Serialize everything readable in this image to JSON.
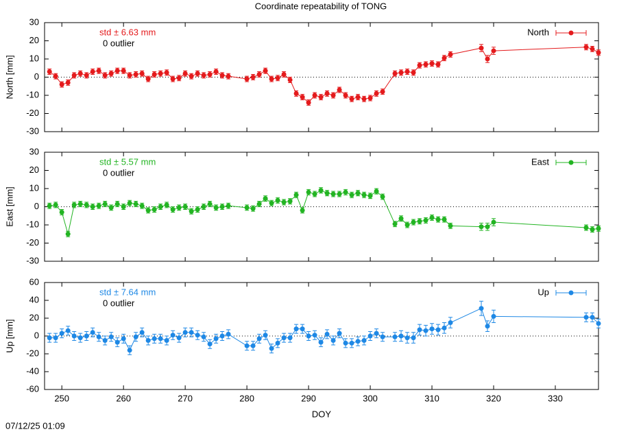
{
  "title": "Coordinate repeatability of TONG",
  "timestamp": "07/12/25 01:09",
  "chart_data": [
    {
      "type": "line",
      "y_label": "North [mm]",
      "std_label": "std ± 6.63 mm",
      "outlier_label": "0 outlier",
      "legend": "upper right",
      "zero_line": true,
      "x": [
        248,
        249,
        250,
        251,
        252,
        253,
        254,
        255,
        256,
        257,
        258,
        259,
        260,
        261,
        262,
        263,
        264,
        265,
        266,
        267,
        268,
        269,
        270,
        271,
        272,
        273,
        274,
        275,
        276,
        277,
        280,
        281,
        282,
        283,
        284,
        285,
        286,
        287,
        288,
        289,
        290,
        291,
        292,
        293,
        294,
        295,
        296,
        297,
        298,
        299,
        300,
        301,
        302,
        304,
        305,
        306,
        307,
        308,
        309,
        310,
        311,
        312,
        313,
        318,
        319,
        320,
        335,
        336,
        337
      ],
      "xlim": [
        247.2,
        337.0
      ],
      "xticks": [
        250,
        260,
        270,
        280,
        290,
        300,
        310,
        320,
        330
      ],
      "ylim": [
        -30,
        30
      ],
      "yticks": [
        -30,
        -20,
        -10,
        0,
        10,
        20,
        30
      ],
      "series": [
        {
          "name": "North",
          "color": "#e41a1c",
          "values": [
            3,
            0.5,
            -4,
            -3,
            1,
            2,
            1,
            3,
            3.5,
            1,
            2,
            3.5,
            3.5,
            1,
            1.5,
            2,
            -1,
            1.5,
            2,
            2.5,
            -1,
            -0.5,
            2,
            0.5,
            2,
            1,
            1.5,
            3,
            1,
            0.5,
            -1,
            0,
            1.5,
            3.5,
            -1,
            -0.5,
            1.5,
            -1.5,
            -9,
            -11,
            -14,
            -10,
            -11,
            -9,
            -10,
            -7,
            -10,
            -12,
            -11,
            -12,
            -11.5,
            -9,
            -8,
            2,
            2.5,
            3,
            2.5,
            6.5,
            7,
            7.5,
            7,
            10.5,
            12.5,
            16,
            10,
            14.5,
            16.5,
            15.5,
            13.5
          ],
          "errors": [
            1.5,
            1.5,
            1.5,
            1.5,
            1.5,
            1.5,
            1.5,
            1.5,
            1.5,
            1.5,
            1.5,
            1.5,
            1.5,
            1.5,
            1.5,
            1.5,
            1.5,
            1.5,
            1.5,
            1.5,
            1.5,
            1.5,
            1.5,
            1.5,
            1.5,
            1.5,
            1.5,
            1.5,
            1.5,
            1.5,
            1.5,
            1.5,
            1.5,
            1.5,
            1.5,
            1.5,
            1.5,
            1.5,
            1.5,
            1.5,
            1.5,
            1.5,
            1.5,
            1.5,
            1.5,
            1.5,
            1.5,
            1.5,
            1.5,
            1.5,
            1.5,
            1.5,
            1.5,
            1.5,
            1.5,
            1.5,
            1.5,
            1.5,
            1.5,
            1.5,
            1.5,
            1.5,
            1.5,
            2,
            2,
            2,
            1.5,
            1.5,
            1.5
          ]
        }
      ]
    },
    {
      "type": "line",
      "y_label": "East [mm]",
      "std_label": "std ± 5.57 mm",
      "outlier_label": "0 outlier",
      "legend": "upper right",
      "zero_line": true,
      "x": [
        248,
        249,
        250,
        251,
        252,
        253,
        254,
        255,
        256,
        257,
        258,
        259,
        260,
        261,
        262,
        263,
        264,
        265,
        266,
        267,
        268,
        269,
        270,
        271,
        272,
        273,
        274,
        275,
        276,
        277,
        280,
        281,
        282,
        283,
        284,
        285,
        286,
        287,
        288,
        289,
        290,
        291,
        292,
        293,
        294,
        295,
        296,
        297,
        298,
        299,
        300,
        301,
        302,
        304,
        305,
        306,
        307,
        308,
        309,
        310,
        311,
        312,
        313,
        318,
        319,
        320,
        335,
        336,
        337
      ],
      "xlim": [
        247.2,
        337.0
      ],
      "xticks": [
        250,
        260,
        270,
        280,
        290,
        300,
        310,
        320,
        330
      ],
      "ylim": [
        -30,
        30
      ],
      "yticks": [
        -30,
        -20,
        -10,
        0,
        10,
        20,
        30
      ],
      "series": [
        {
          "name": "East",
          "color": "#22b422",
          "values": [
            0.5,
            1,
            -3,
            -15,
            1,
            1.5,
            1,
            0,
            0.5,
            1.5,
            -0.5,
            1.5,
            0,
            2,
            1.5,
            0.5,
            -2,
            -1.5,
            0,
            1,
            -1.5,
            -0.5,
            0,
            -2.5,
            -1.5,
            0,
            1.5,
            -0.5,
            0,
            0.5,
            -0.5,
            -1,
            1.5,
            4.5,
            2,
            3.5,
            2.5,
            3,
            6.5,
            -2,
            8,
            7,
            9,
            7.5,
            7,
            7,
            8,
            6.5,
            7.5,
            6.5,
            6,
            8.5,
            5.5,
            -9.5,
            -6.5,
            -10,
            -8.5,
            -8,
            -7.5,
            -6,
            -7,
            -7,
            -10.5,
            -11,
            -11,
            -8.5,
            -11.5,
            -12.5,
            -12
          ],
          "errors": [
            1.5,
            1.5,
            1.5,
            1.5,
            1.5,
            1.5,
            1.5,
            1.5,
            1.5,
            1.5,
            1.5,
            1.5,
            1.5,
            1.5,
            1.5,
            1.5,
            1.5,
            1.5,
            1.5,
            1.5,
            1.5,
            1.5,
            1.5,
            1.5,
            1.5,
            1.5,
            1.5,
            1.5,
            1.5,
            1.5,
            1.5,
            1.5,
            1.5,
            1.5,
            1.5,
            1.5,
            1.5,
            1.5,
            1.5,
            1.5,
            1.5,
            1.5,
            1.5,
            1.5,
            1.5,
            1.5,
            1.5,
            1.5,
            1.5,
            1.5,
            1.5,
            1.5,
            1.5,
            1.5,
            1.5,
            1.5,
            1.5,
            1.5,
            1.5,
            1.5,
            1.5,
            1.5,
            1.5,
            2,
            2,
            2,
            1.5,
            1.5,
            1.5
          ]
        }
      ]
    },
    {
      "type": "line",
      "y_label": "Up [mm]",
      "x_label": "DOY",
      "std_label": "std ± 7.64 mm",
      "outlier_label": "0 outlier",
      "legend": "upper right",
      "zero_line": true,
      "x": [
        248,
        249,
        250,
        251,
        252,
        253,
        254,
        255,
        256,
        257,
        258,
        259,
        260,
        261,
        262,
        263,
        264,
        265,
        266,
        267,
        268,
        269,
        270,
        271,
        272,
        273,
        274,
        275,
        276,
        277,
        280,
        281,
        282,
        283,
        284,
        285,
        286,
        287,
        288,
        289,
        290,
        291,
        292,
        293,
        294,
        295,
        296,
        297,
        298,
        299,
        300,
        301,
        302,
        304,
        305,
        306,
        307,
        308,
        309,
        310,
        311,
        312,
        313,
        318,
        319,
        320,
        335,
        336,
        337
      ],
      "xlim": [
        247.2,
        337.0
      ],
      "xticks": [
        250,
        260,
        270,
        280,
        290,
        300,
        310,
        320,
        330
      ],
      "ylim": [
        -60,
        60
      ],
      "yticks": [
        -60,
        -40,
        -20,
        0,
        20,
        40,
        60
      ],
      "series": [
        {
          "name": "Up",
          "color": "#1e88e5",
          "values": [
            -2,
            -2,
            3,
            6,
            0,
            -2,
            0,
            4,
            -1,
            -5,
            -1,
            -7,
            -3,
            -16,
            -1,
            4,
            -5,
            -3,
            -3,
            -5,
            1,
            -2,
            4,
            4,
            1,
            -1,
            -9,
            -3,
            0,
            2,
            -11,
            -11,
            -3,
            1,
            -14,
            -8,
            -2,
            -2,
            8,
            8,
            0,
            1,
            -7,
            2,
            -5,
            3,
            -8,
            -8,
            -6,
            -5,
            0,
            3,
            -1,
            -1,
            0,
            -2,
            -2,
            7,
            6,
            8,
            7,
            9,
            15,
            31,
            11,
            22,
            21,
            21,
            14
          ],
          "errors": [
            5,
            5,
            5,
            5,
            5,
            5,
            5,
            5,
            5,
            5,
            5,
            5,
            5,
            5,
            5,
            5,
            5,
            5,
            5,
            5,
            5,
            5,
            5,
            5,
            5,
            5,
            5,
            5,
            5,
            5,
            5,
            5,
            5,
            5,
            5,
            5,
            5,
            5,
            5,
            5,
            5,
            5,
            5,
            5,
            5,
            5,
            5,
            5,
            5,
            5,
            5,
            5,
            5,
            5,
            6,
            6,
            6,
            6,
            6,
            6,
            6,
            6,
            6,
            8,
            6,
            7,
            5,
            5,
            5
          ]
        }
      ]
    }
  ]
}
